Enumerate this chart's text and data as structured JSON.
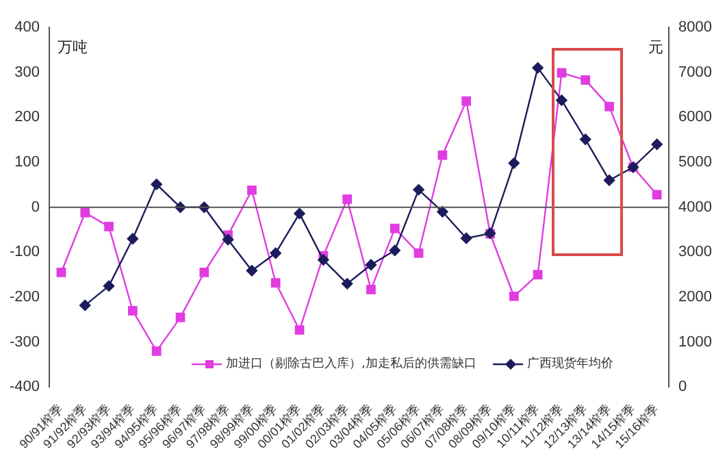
{
  "chart_data": {
    "type": "line",
    "ylabel": "万吨",
    "y2label": "元",
    "categories": [
      "90/91榨季",
      "91/92榨季",
      "92/93榨季",
      "93/94榨季",
      "94/95榨季",
      "95/96榨季",
      "96/97榨季",
      "97/98榨季",
      "98/99榨季",
      "99/00榨季",
      "00/01榨季",
      "01/02榨季",
      "02/03榨季",
      "03/04榨季",
      "04/05榨季",
      "05/06榨季",
      "06/07榨季",
      "07/08榨季",
      "08/09榨季",
      "09/10榨季",
      "10/11榨季",
      "11/12榨季",
      "12/13榨季",
      "13/14榨季",
      "14/15榨季",
      "15/16榨季"
    ],
    "series": [
      {
        "name": "加进口（剔除古巴入库）,加走私后的供需缺口",
        "color": "#e03ce0",
        "marker": "square",
        "values": [
          -145,
          -12,
          -43,
          -230,
          -320,
          -245,
          -145,
          -62,
          38,
          -168,
          -273,
          -108,
          18,
          -183,
          -47,
          -102,
          116,
          236,
          -59,
          -198,
          -150,
          299,
          283,
          224,
          89,
          28
        ]
      },
      {
        "name": "广西现货年均价",
        "color": "#1c1c5c",
        "marker": "diamond",
        "axis": "y2",
        "values": [
          null,
          1820,
          2250,
          3300,
          4510,
          4000,
          4000,
          3280,
          2590,
          2980,
          3860,
          2830,
          2300,
          2720,
          3040,
          4390,
          3900,
          3310,
          3420,
          4980,
          7100,
          6380,
          5510,
          4600,
          4890,
          5400
        ]
      }
    ],
    "ylim": [
      -400,
      400
    ],
    "yticks": [
      -400,
      -300,
      -200,
      -100,
      0,
      100,
      200,
      300,
      400
    ],
    "y2lim": [
      0,
      8000
    ],
    "y2ticks": [
      0,
      1000,
      2000,
      3000,
      4000,
      5000,
      6000,
      7000,
      8000
    ],
    "ref_lines": [
      {
        "axis": "y",
        "value": 0,
        "color": "#555555"
      }
    ],
    "legend": "bottom",
    "line_style": "solid"
  }
}
